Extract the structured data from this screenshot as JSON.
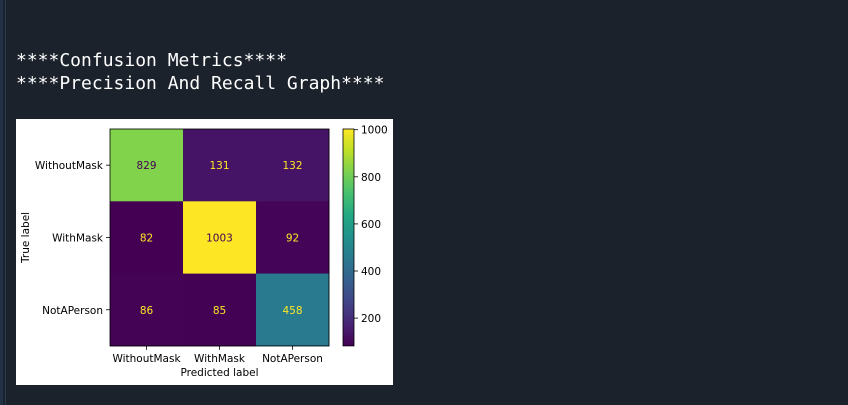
{
  "output": {
    "line1": "****Confusion Metrics****",
    "line2": "****Precision And Recall Graph****"
  },
  "chart_data": {
    "type": "heatmap",
    "title": "",
    "xlabel": "Predicted label",
    "ylabel": "True label",
    "x_categories": [
      "WithoutMask",
      "WithMask",
      "NotAPerson"
    ],
    "y_categories": [
      "WithoutMask",
      "WithMask",
      "NotAPerson"
    ],
    "matrix": [
      [
        829,
        131,
        132
      ],
      [
        82,
        1003,
        92
      ],
      [
        86,
        85,
        458
      ]
    ],
    "colormap": "viridis",
    "colorbar": {
      "ticks": [
        200,
        400,
        600,
        800,
        1000
      ],
      "vmin": 82,
      "vmax": 1003
    }
  }
}
